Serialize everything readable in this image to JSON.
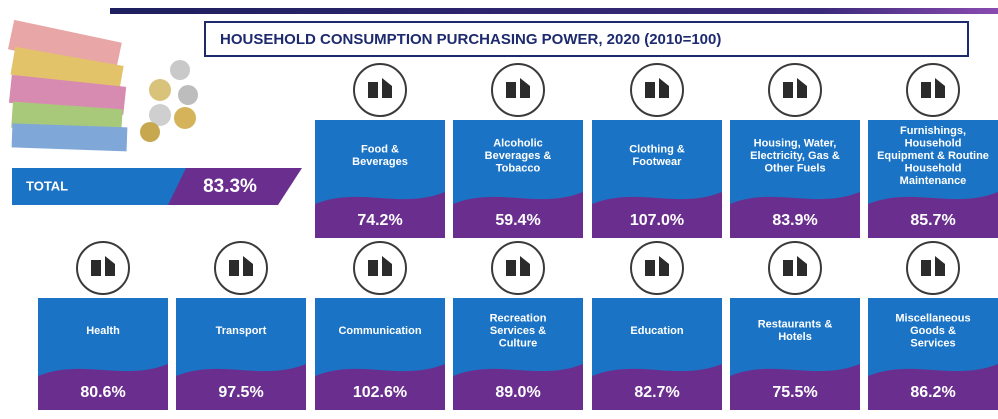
{
  "header": {
    "title": "HOUSEHOLD CONSUMPTION PURCHASING POWER, 2020 (2010=100)"
  },
  "total": {
    "label": "TOTAL",
    "value": "83.3%"
  },
  "categories": [
    {
      "label": [
        "Food &",
        "Beverages"
      ],
      "value": "74.2%"
    },
    {
      "label": [
        "Alcoholic",
        "Beverages &",
        "Tobacco"
      ],
      "value": "59.4%"
    },
    {
      "label": [
        "Clothing &",
        "Footwear"
      ],
      "value": "107.0%"
    },
    {
      "label": [
        "Housing, Water,",
        "Electricity, Gas &",
        "Other Fuels"
      ],
      "value": "83.9%"
    },
    {
      "label": [
        "Furnishings,",
        "Household",
        "Equipment & Routine",
        "Household",
        "Maintenance"
      ],
      "value": "85.7%"
    },
    {
      "label": [
        "Health"
      ],
      "value": "80.6%"
    },
    {
      "label": [
        "Transport"
      ],
      "value": "97.5%"
    },
    {
      "label": [
        "Communication"
      ],
      "value": "102.6%"
    },
    {
      "label": [
        "Recreation",
        "Services &",
        "Culture"
      ],
      "value": "89.0%"
    },
    {
      "label": [
        "Education"
      ],
      "value": "82.7%"
    },
    {
      "label": [
        "Restaurants &",
        "Hotels"
      ],
      "value": "75.5%"
    },
    {
      "label": [
        "Miscellaneous",
        "Goods &",
        "Services"
      ],
      "value": "86.2%"
    }
  ]
}
